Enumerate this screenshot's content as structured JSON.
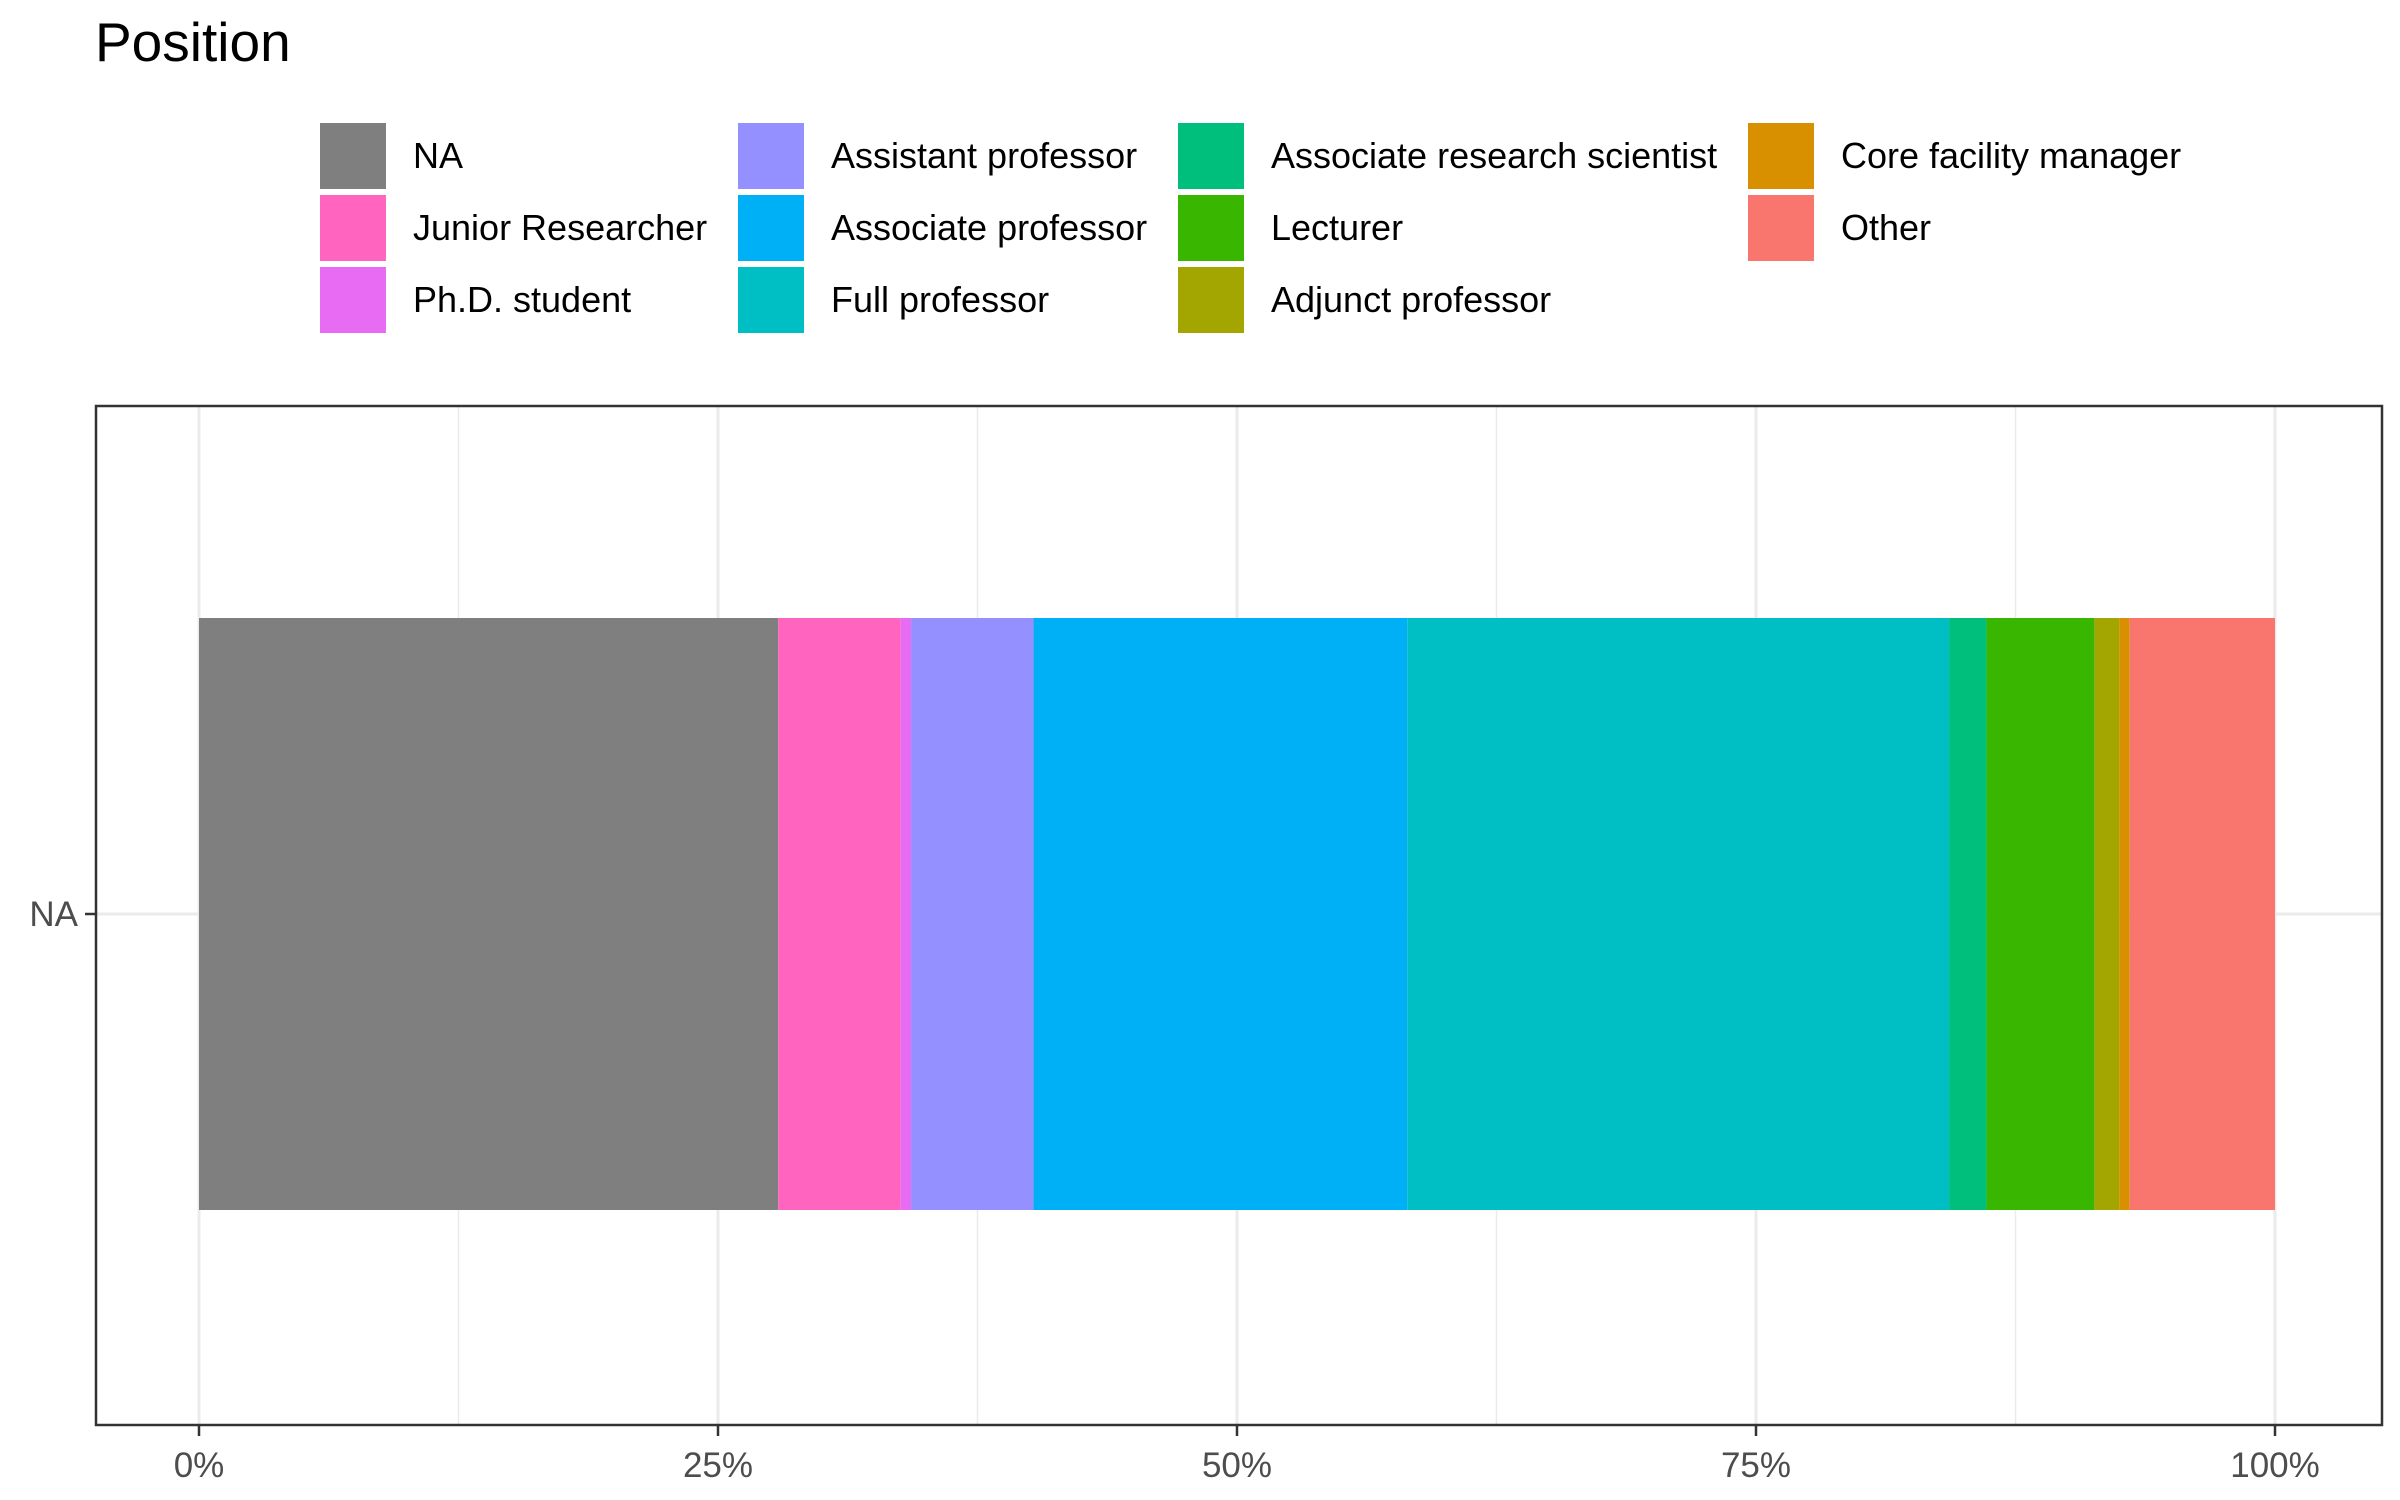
{
  "chart_data": {
    "type": "bar",
    "orientation": "horizontal",
    "stacked": "percent",
    "categories": [
      "NA"
    ],
    "legend_title": "Position",
    "legend_position": "top",
    "x_tick_labels": [
      "0%",
      "25%",
      "50%",
      "75%",
      "100%"
    ],
    "xlim": [
      0,
      1
    ],
    "grid": true,
    "series": [
      {
        "name": "NA",
        "color": "#7F7F7F",
        "values": [
          0.279
        ]
      },
      {
        "name": "Junior Researcher",
        "color": "#FF65BF",
        "values": [
          0.059
        ]
      },
      {
        "name": "Ph.D. student",
        "color": "#E76BF3",
        "values": [
          0.005
        ]
      },
      {
        "name": "Assistant professor",
        "color": "#9590FF",
        "values": [
          0.059
        ]
      },
      {
        "name": "Associate professor",
        "color": "#00B0F6",
        "values": [
          0.18
        ]
      },
      {
        "name": "Full professor",
        "color": "#00BFC4",
        "values": [
          0.261
        ]
      },
      {
        "name": "Associate research scientist",
        "color": "#00BF7D",
        "values": [
          0.018
        ]
      },
      {
        "name": "Lecturer",
        "color": "#39B600",
        "values": [
          0.052
        ]
      },
      {
        "name": "Adjunct professor",
        "color": "#A3A500",
        "values": [
          0.012
        ]
      },
      {
        "name": "Core facility manager",
        "color": "#D89000",
        "values": [
          0.005
        ]
      },
      {
        "name": "Other",
        "color": "#F8766D",
        "values": [
          0.07
        ]
      }
    ]
  }
}
